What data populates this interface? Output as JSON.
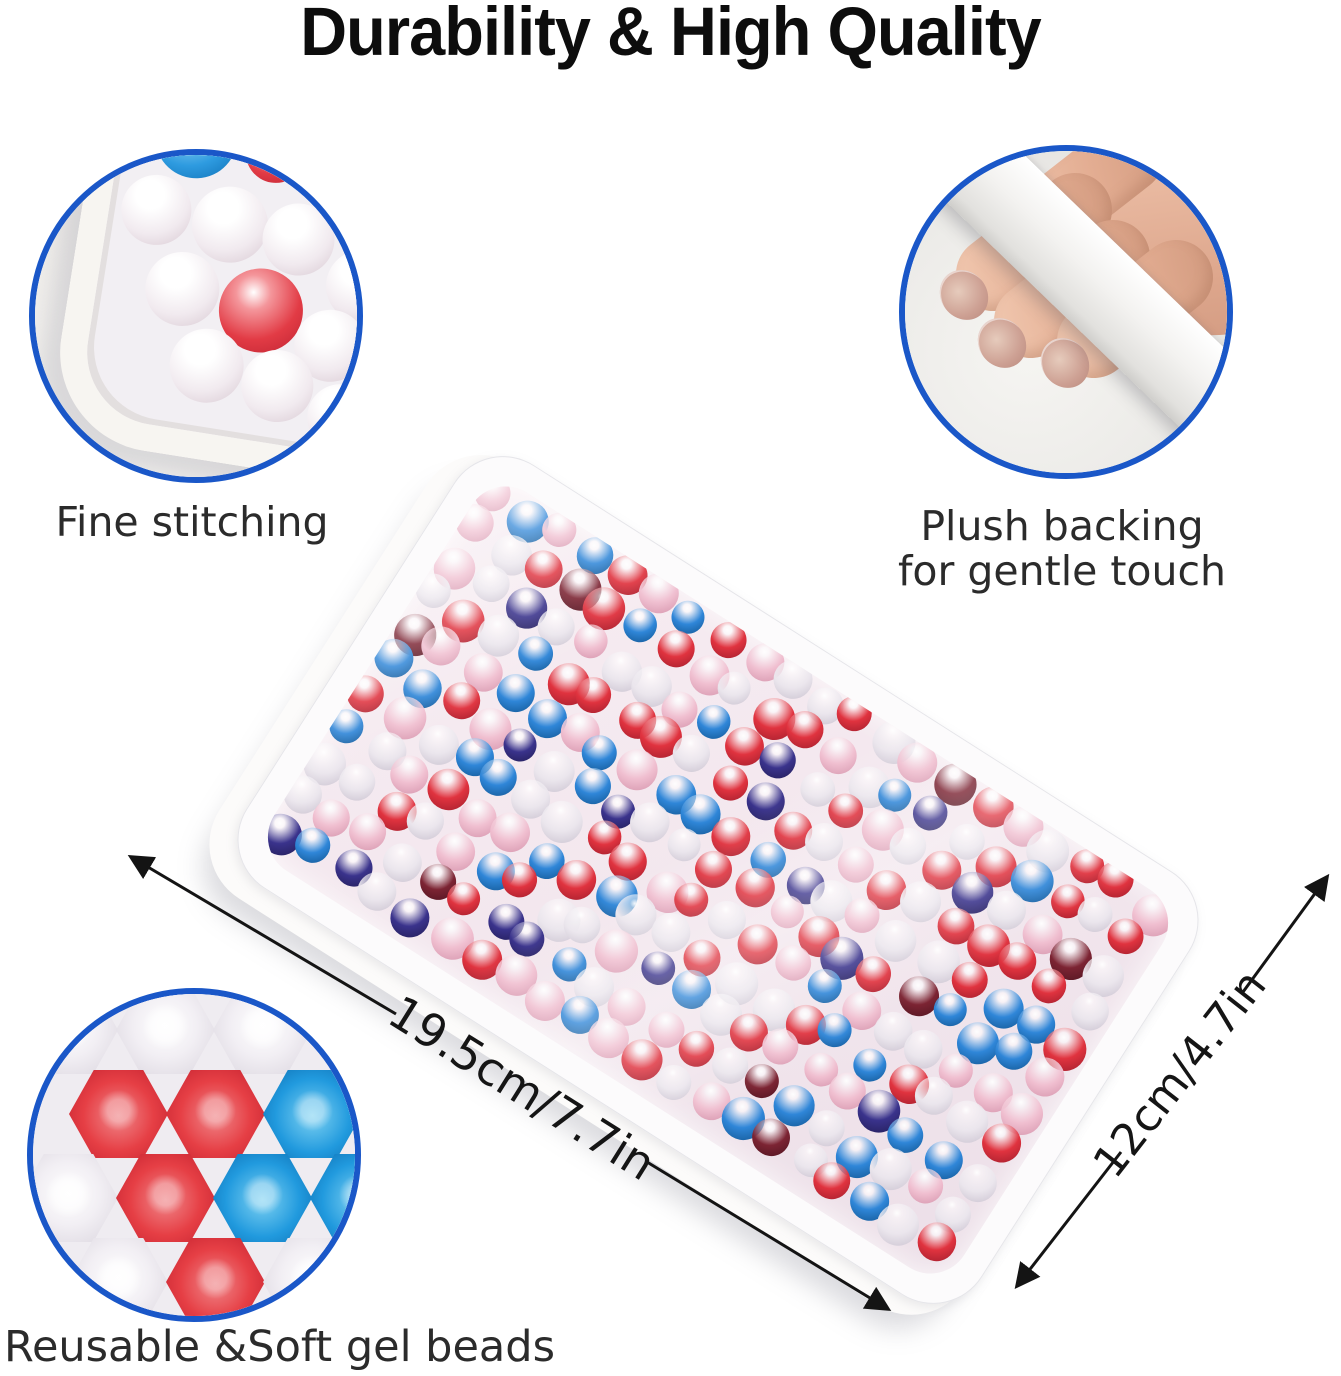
{
  "title": "Durability & High Quality",
  "captions": {
    "stitching": "Fine stitching",
    "plush_line1": "Plush backing",
    "plush_line2": "for gentle touch",
    "beads": "Reusable &Soft gel beads"
  },
  "dimensions": {
    "length": "19.5cm/7.7in",
    "width": "12cm/4.7in"
  },
  "palette": {
    "circle_border": "#1a57c8",
    "title_color": "#0d0d0d",
    "caption_color": "#2b2b2b",
    "dimension_line_color": "#141414",
    "hex_red": "#e63f45",
    "hex_blue": "#219ade",
    "hex_clear": "#f2eff4",
    "skin": "#e3ad92",
    "strap": "#f3f2f0",
    "bead_colors": [
      {
        "name": "red",
        "hex": "#e0333f",
        "dark": "#9e1d2c",
        "weight": 0.23
      },
      {
        "name": "maroon",
        "hex": "#7c2433",
        "dark": "#4e1420",
        "weight": 0.04
      },
      {
        "name": "blue",
        "hex": "#2f86d8",
        "dark": "#11548f",
        "weight": 0.2
      },
      {
        "name": "navy",
        "hex": "#3a338c",
        "dark": "#221c55",
        "weight": 0.06
      },
      {
        "name": "pink",
        "hex": "#f0bfd0",
        "dark": "#d493ab",
        "weight": 0.18
      },
      {
        "name": "clear",
        "hex": "#ebe6ed",
        "dark": "#c9c1cf",
        "weight": 0.29
      }
    ]
  }
}
